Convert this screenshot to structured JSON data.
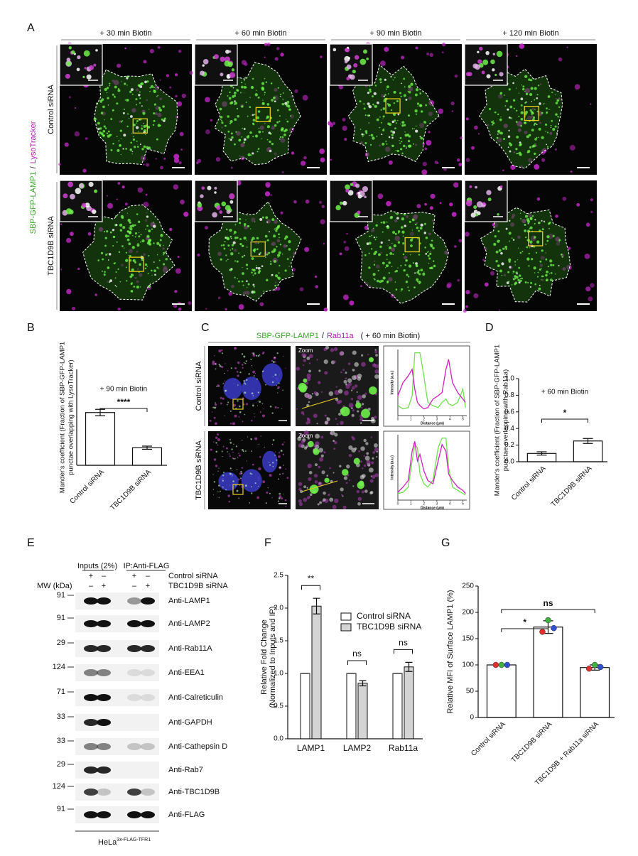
{
  "panel_a": {
    "letter": "A",
    "columns": [
      "+ 30 min Biotin",
      "+ 60 min Biotin",
      "+ 90 min Biotin",
      "+ 120 min Biotin"
    ],
    "rows": [
      "Control siRNA",
      "TBC1D9B siRNA"
    ],
    "stain": {
      "green": "SBP-GFP-LAMP1",
      "separator": "/",
      "magenta": "LysoTracker"
    }
  },
  "panel_c": {
    "letter": "C",
    "title": {
      "green": "SBP-GFP-LAMP1",
      "separator": "/",
      "magenta": "Rab11a",
      "condition": "( + 60 min Biotin)"
    },
    "rows": [
      "Control siRNA",
      "TBC1D9B siRNA"
    ],
    "zoom_label": "Zoom"
  },
  "panel_e": {
    "letter": "E",
    "inputs_label": "Inputs (2%)",
    "ip_label": "IP:Anti-FLAG",
    "treatments": [
      {
        "name": "Control siRNA",
        "signs": [
          "+",
          "–",
          "+",
          "–"
        ]
      },
      {
        "name": "TBC1D9B siRNA",
        "signs": [
          "–",
          "+",
          "–",
          "+"
        ]
      }
    ],
    "mw_header": "MW (kDa)",
    "blots": [
      {
        "mw": 91,
        "antibody": "Anti-LAMP1"
      },
      {
        "mw": 91,
        "antibody": "Anti-LAMP2"
      },
      {
        "mw": 29,
        "antibody": "Anti-Rab11A"
      },
      {
        "mw": 124,
        "antibody": "Anti-EEA1"
      },
      {
        "mw": 71,
        "antibody": "Anti-Calreticulin"
      },
      {
        "mw": 33,
        "antibody": "Anti-GAPDH"
      },
      {
        "mw": 33,
        "antibody": "Anti-Cathepsin D"
      },
      {
        "mw": 29,
        "antibody": "Anti-Rab7"
      },
      {
        "mw": 124,
        "antibody": "Anti-TBC1D9B"
      },
      {
        "mw": 91,
        "antibody": "Anti-FLAG"
      }
    ],
    "cell_line": {
      "name": "HeLa",
      "superscript": "3x-FLAG-TFR1"
    }
  },
  "chart_data": [
    {
      "type": "bar",
      "letter": "B",
      "ylabel": [
        "Mander's coefficient (Fraction of SBP-GFP-LAMP1",
        "punctae overlapping with LysoTracker)"
      ],
      "annotation": "+ 90 min Biotin",
      "significance": [
        "****"
      ],
      "categories": [
        "Control siRNA",
        "TBC1D9B siRNA"
      ],
      "values": [
        0.33,
        0.11
      ],
      "errors": [
        0.02,
        0.01
      ],
      "color": "#ffffff",
      "ylim": [
        0,
        0.6
      ]
    },
    {
      "type": "bar",
      "letter": "D",
      "ylabel": [
        "Mander's coefficient (Fraction of SBP-GFP-LAMP1",
        "punctae overlapping with Rab11a)"
      ],
      "annotation": "+ 60 min Biotin",
      "significance": [
        "*"
      ],
      "categories": [
        "Control siRNA",
        "TBC1D9B siRNA"
      ],
      "values": [
        0.1,
        0.25
      ],
      "errors": [
        0.02,
        0.03
      ],
      "color": "#ffffff",
      "ylim": [
        0,
        1.0
      ],
      "yticks": [
        {
          "value": 0,
          "label": "0.0"
        },
        {
          "value": 0.2,
          "label": "0.2"
        },
        {
          "value": 0.4,
          "label": "0.4"
        },
        {
          "value": 0.6,
          "label": "0.6"
        },
        {
          "value": 0.8,
          "label": "0.8"
        },
        {
          "value": 1.0,
          "label": "1.0"
        }
      ]
    },
    {
      "type": "grouped-bar",
      "letter": "F",
      "ylabel": [
        "Relative Fold Change",
        "(Normalized to Inputs and IP)"
      ],
      "significance": [
        "**",
        "ns",
        "ns"
      ],
      "categories": [
        "LAMP1",
        "LAMP2",
        "Rab11a"
      ],
      "series": [
        {
          "name": "Control siRNA",
          "color": "#ffffff",
          "values": [
            1,
            1,
            1
          ],
          "errors": [
            0,
            0,
            0
          ]
        },
        {
          "name": "TBC1D9B siRNA",
          "color": "#d4d4d4",
          "values": [
            2.03,
            0.85,
            1.1
          ],
          "errors": [
            0.12,
            0.04,
            0.07
          ]
        }
      ],
      "ylim": [
        0,
        2.5
      ],
      "yticks": [
        {
          "value": 0,
          "label": "0.0"
        },
        {
          "value": 0.5,
          "label": "0.5"
        },
        {
          "value": 1.0,
          "label": "1.0"
        },
        {
          "value": 1.5,
          "label": "1.5"
        },
        {
          "value": 2.0,
          "label": "2.0"
        },
        {
          "value": 2.5,
          "label": "2.5"
        }
      ]
    },
    {
      "type": "bar",
      "letter": "G",
      "ylabel": [
        "Relative MFI of Surface LAMP1 (%)"
      ],
      "significance": [
        "*",
        "ns"
      ],
      "categories": [
        "Control siRNA",
        "TBC1D9B siRNA",
        "TBC1D9B + Rab11a siRNA"
      ],
      "values": [
        100,
        172,
        95
      ],
      "errors": [
        0,
        12,
        5
      ],
      "color": "#ffffff",
      "replicates": [
        [
          100,
          100,
          100
        ],
        [
          163,
          185,
          170
        ],
        [
          93,
          100,
          96
        ]
      ],
      "replicate_colors": [
        "#e03030",
        "#40b040",
        "#3050d0"
      ],
      "ylim": [
        0,
        250
      ],
      "yticks": [
        0,
        50,
        100,
        150,
        200,
        250
      ]
    },
    {
      "type": "line",
      "xlabel": "Distance (µm)",
      "ylabel": "Intensity (a.u.)",
      "x": [
        0,
        0.4,
        0.8,
        1.1,
        1.3,
        1.5,
        1.7,
        2.0,
        2.3,
        2.7,
        3.1,
        3.4,
        3.7,
        3.9,
        4.2,
        4.6,
        5.0,
        5.2
      ],
      "series": [
        {
          "color": "#6ee04a",
          "values": [
            15,
            10,
            12,
            30,
            95,
            95,
            95,
            60,
            20,
            15,
            12,
            20,
            25,
            18,
            15,
            20,
            40,
            12
          ]
        },
        {
          "color": "#d020c0",
          "values": [
            30,
            50,
            60,
            70,
            40,
            20,
            15,
            10,
            12,
            25,
            30,
            35,
            70,
            85,
            50,
            35,
            25,
            20
          ]
        }
      ],
      "xlim": [
        0,
        5.3
      ],
      "ylim": [
        0,
        100
      ],
      "xticks": [
        0,
        1,
        2,
        3,
        4,
        5
      ]
    },
    {
      "type": "line",
      "xlabel": "Distance (µm)",
      "ylabel": "Intensity (a.u.)",
      "x": [
        0,
        0.4,
        0.8,
        1.1,
        1.3,
        1.5,
        1.7,
        2.0,
        2.3,
        2.7,
        3.1,
        3.4,
        3.7,
        3.9,
        4.2,
        4.6,
        5.0,
        5.2
      ],
      "series": [
        {
          "color": "#6ee04a",
          "values": [
            10,
            12,
            20,
            60,
            85,
            80,
            40,
            25,
            20,
            30,
            80,
            95,
            95,
            50,
            20,
            15,
            10,
            8
          ]
        },
        {
          "color": "#d020c0",
          "values": [
            12,
            20,
            30,
            75,
            90,
            60,
            70,
            45,
            30,
            25,
            60,
            85,
            75,
            40,
            30,
            20,
            15,
            10
          ]
        }
      ],
      "xlim": [
        0,
        5.3
      ],
      "ylim": [
        0,
        100
      ],
      "xticks": [
        0,
        1,
        2,
        3,
        4,
        5
      ]
    }
  ]
}
